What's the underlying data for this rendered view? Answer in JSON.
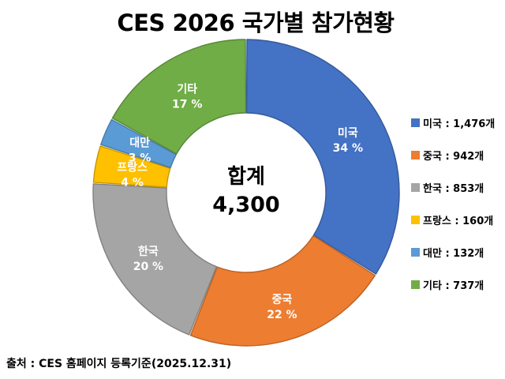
{
  "page": {
    "background": "#FFFFFF"
  },
  "chart_data": {
    "type": "doughnut",
    "title": "CES 2026 국가별 참가현황",
    "total": 4300,
    "unit": "개",
    "total_label": {
      "line1": "합계",
      "line2": "4,300"
    },
    "start_angle_deg": 0,
    "direction": "clockwise",
    "legend_position": "right",
    "hole_ratio": 0.52,
    "slices": [
      {
        "key": "usa",
        "name": "미국",
        "count": 1476,
        "percent": 34,
        "percent_label": "34 %",
        "color": "#4472C4",
        "legend_label": "미국 : 1,476개"
      },
      {
        "key": "china",
        "name": "중국",
        "count": 942,
        "percent": 22,
        "percent_label": "22 %",
        "color": "#ED7D31",
        "legend_label": "중국 : 942개"
      },
      {
        "key": "korea",
        "name": "한국",
        "count": 853,
        "percent": 20,
        "percent_label": "20 %",
        "color": "#A5A5A5",
        "legend_label": "한국 : 853개"
      },
      {
        "key": "france",
        "name": "프랑스",
        "count": 160,
        "percent": 4,
        "percent_label": "4 %",
        "color": "#FFC000",
        "legend_label": "프랑스 : 160개"
      },
      {
        "key": "taiwan",
        "name": "대만",
        "count": 132,
        "percent": 3,
        "percent_label": "3 %",
        "color": "#5B9BD5",
        "legend_label": "대만 : 132개"
      },
      {
        "key": "others",
        "name": "기타",
        "count": 737,
        "percent": 17,
        "percent_label": "17 %",
        "color": "#70AD47",
        "legend_label": "기타 : 737개"
      }
    ],
    "source_note": "출처 : CES 홈페이지 등록기준(2025.12.31)"
  }
}
